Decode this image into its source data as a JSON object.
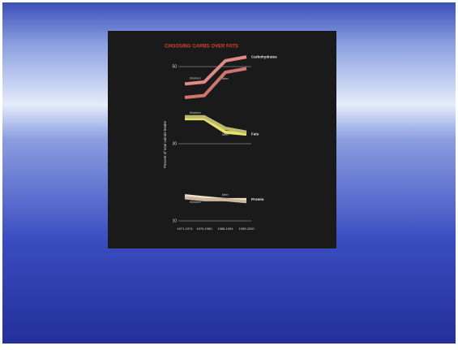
{
  "chart_data": {
    "type": "line",
    "title": "CHOOSING CARBS OVER FATS",
    "y_label": "Percent of total calorie intake",
    "categories": [
      "1971-1974",
      "1976-1980",
      "1988-1994",
      "1999-2000"
    ],
    "ylim": [
      10,
      50
    ],
    "yticks": [
      10,
      30,
      50
    ],
    "groups": [
      {
        "name": "Carbohydrates",
        "series": [
          {
            "name": "Women",
            "color": "#e08a88",
            "values": [
              45.5,
              46,
              51.5,
              52.5
            ]
          },
          {
            "name": "Men",
            "color": "#d07470",
            "values": [
              42,
              42.5,
              48.5,
              49.5
            ]
          }
        ]
      },
      {
        "name": "Fats",
        "series": [
          {
            "name": "Women",
            "color": "#e8e26a",
            "values": [
              36.5,
              36.5,
              33,
              32.5
            ]
          },
          {
            "name": "Men",
            "color": "#bdb870",
            "values": [
              37,
              37,
              34,
              33
            ]
          }
        ]
      },
      {
        "name": "Protein",
        "series": [
          {
            "name": "Women",
            "color": "#efe2cc",
            "values": [
              16.5,
              16,
              15.5,
              15.5
            ]
          },
          {
            "name": "Men",
            "color": "#cbb8a0",
            "values": [
              16,
              15.5,
              15.5,
              15
            ]
          }
        ]
      }
    ]
  }
}
